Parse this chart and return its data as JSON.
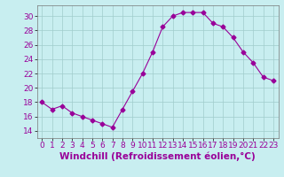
{
  "x": [
    0,
    1,
    2,
    3,
    4,
    5,
    6,
    7,
    8,
    9,
    10,
    11,
    12,
    13,
    14,
    15,
    16,
    17,
    18,
    19,
    20,
    21,
    22,
    23
  ],
  "y": [
    18,
    17,
    17.5,
    16.5,
    16,
    15.5,
    15,
    14.5,
    17,
    19.5,
    22,
    25,
    28.5,
    30,
    30.5,
    30.5,
    30.5,
    29,
    28.5,
    27,
    25,
    23.5,
    21.5,
    21
  ],
  "line_color": "#990099",
  "marker": "D",
  "marker_size": 2.5,
  "bg_color": "#c8eef0",
  "grid_color": "#a0cccc",
  "xlabel": "Windchill (Refroidissement éolien,°C)",
  "ylim": [
    13,
    31.5
  ],
  "yticks": [
    14,
    16,
    18,
    20,
    22,
    24,
    26,
    28,
    30
  ],
  "xlim": [
    -0.5,
    23.5
  ],
  "xticks": [
    0,
    1,
    2,
    3,
    4,
    5,
    6,
    7,
    8,
    9,
    10,
    11,
    12,
    13,
    14,
    15,
    16,
    17,
    18,
    19,
    20,
    21,
    22,
    23
  ],
  "xlabel_fontsize": 7.5,
  "tick_fontsize": 6.5
}
